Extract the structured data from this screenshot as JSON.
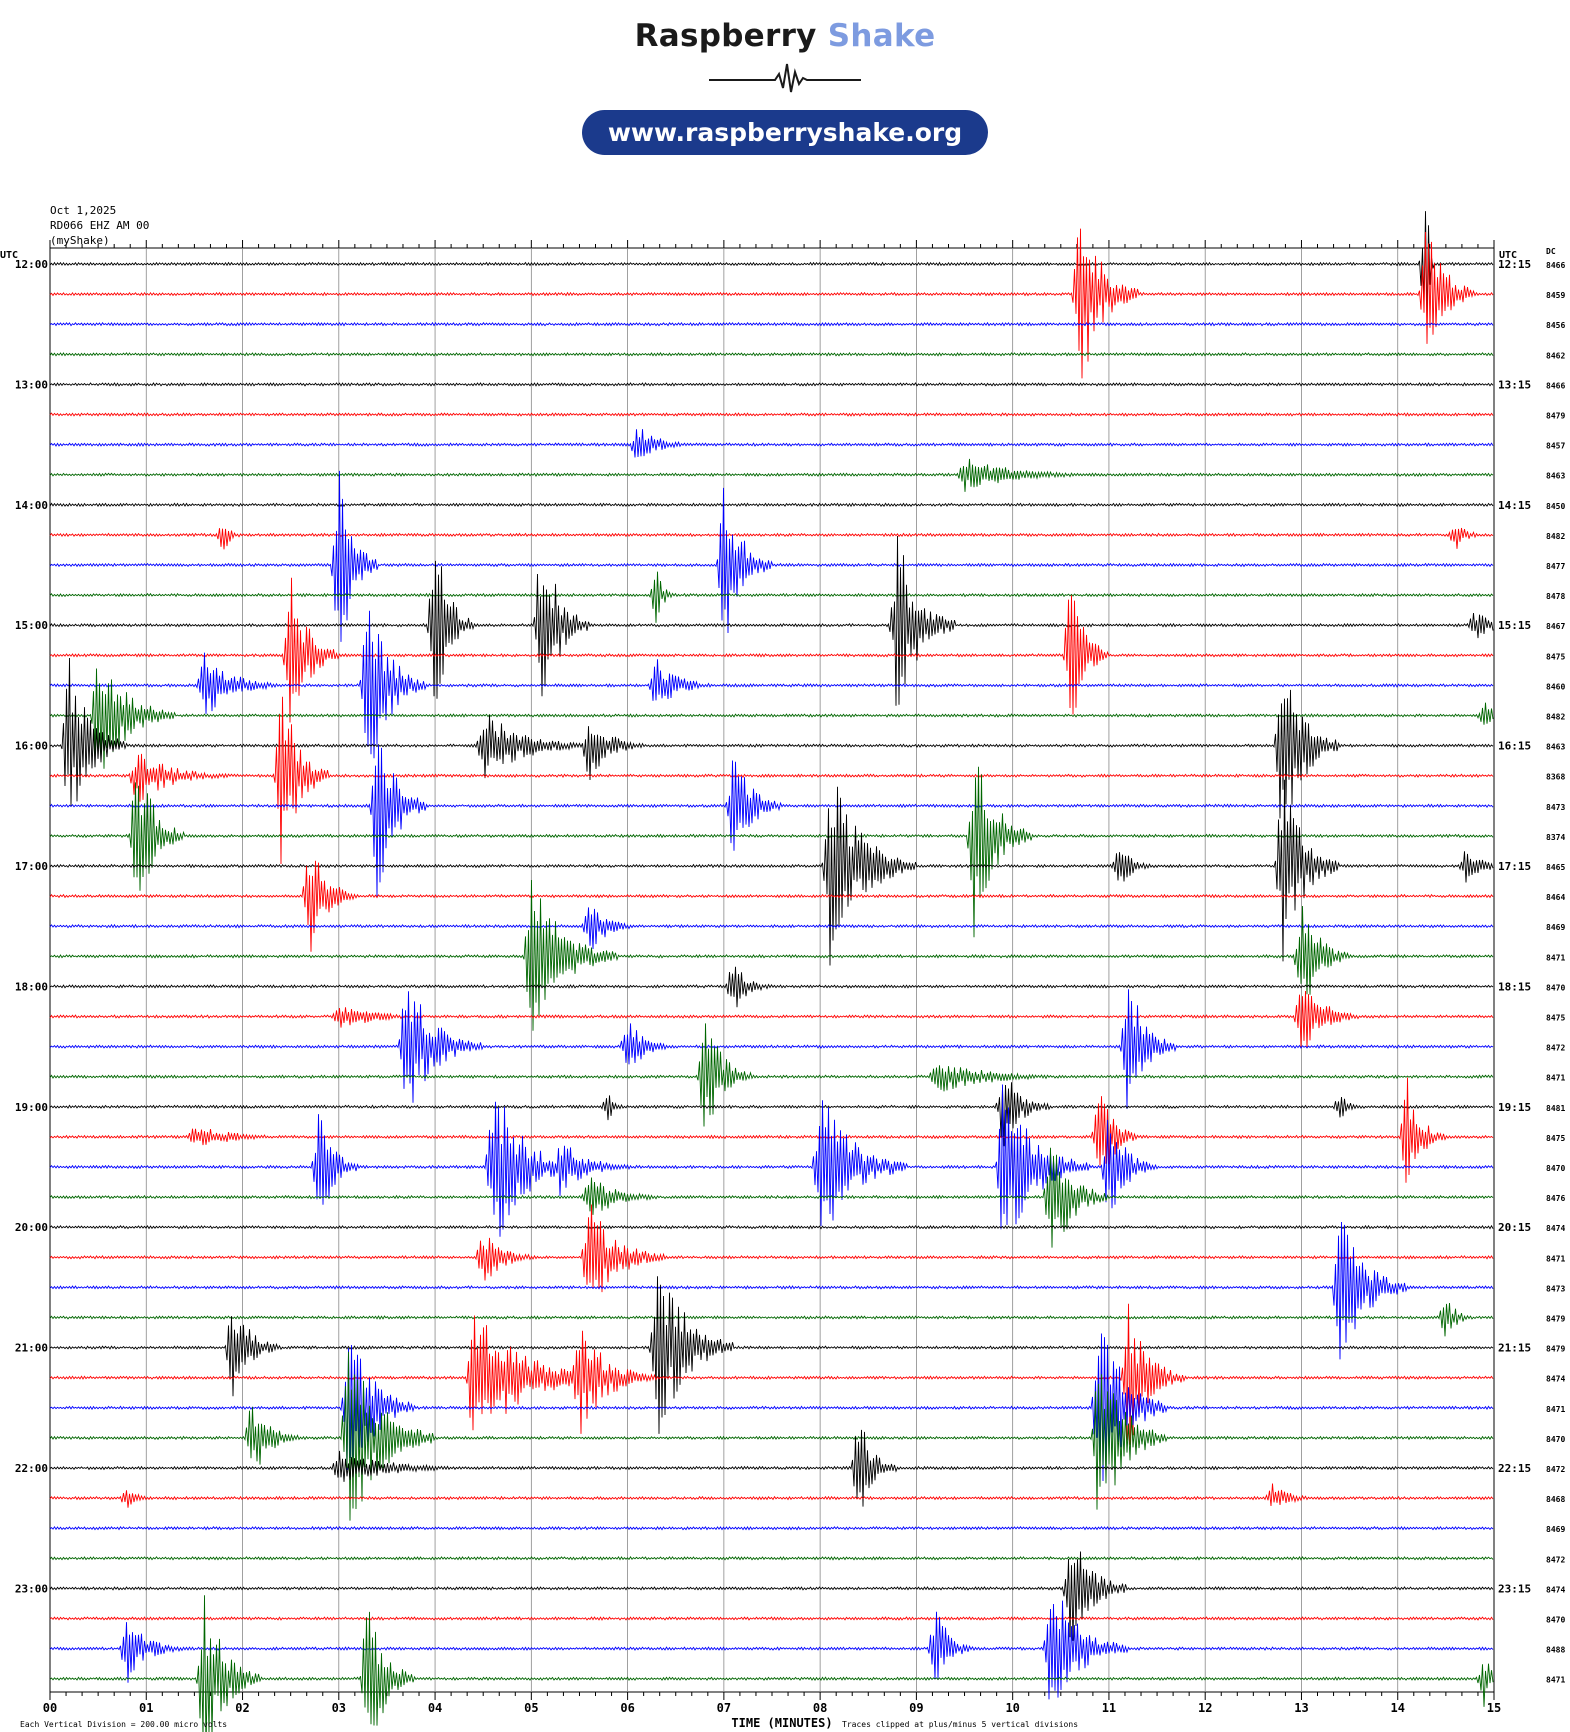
{
  "brand": {
    "name_part1": "Raspberry",
    "name_part2": "Shake",
    "url": "www.raspberryshake.org",
    "accent_color": "#7d9be0",
    "pill_color": "#1b3a8c"
  },
  "header": {
    "date": "Oct 1,2025",
    "station": "RD066 EHZ AM 00",
    "source": "(myShake)"
  },
  "chart_data": {
    "type": "line",
    "title": "",
    "xlabel": "TIME (MINUTES)",
    "left_axis_label": "UTC",
    "right_axis_label": "UTC",
    "dc_label": "DC",
    "x_ticks": [
      "00",
      "01",
      "02",
      "03",
      "04",
      "05",
      "06",
      "07",
      "08",
      "09",
      "10",
      "11",
      "12",
      "13",
      "14",
      "15"
    ],
    "xlim": [
      0,
      15
    ],
    "trace_minutes": 15,
    "footer_left": "Each Vertical Division = 200.00 micro volts",
    "footer_right": "Traces clipped at plus/minus 5 vertical divisions",
    "trace_colors": [
      "#000000",
      "#ff0000",
      "#0000ff",
      "#006600"
    ],
    "left_hour_labels": [
      "12:00",
      "13:00",
      "14:00",
      "15:00",
      "16:00",
      "17:00",
      "18:00",
      "19:00",
      "20:00",
      "21:00",
      "22:00",
      "23:00"
    ],
    "right_hour_labels": [
      "12:15",
      "13:15",
      "14:15",
      "15:15",
      "16:15",
      "17:15",
      "18:15",
      "19:15",
      "20:15",
      "21:15",
      "22:15",
      "23:15"
    ],
    "dc_values": [
      "8466",
      "8459",
      "8456",
      "8462",
      "8466",
      "8479",
      "8457",
      "8463",
      "8450",
      "8482",
      "8477",
      "8478",
      "8467",
      "8475",
      "8460",
      "8482",
      "8463",
      "8368",
      "8473",
      "8374",
      "8465",
      "8464",
      "8469",
      "8471",
      "8470",
      "8475",
      "8472",
      "8471",
      "8481",
      "8475",
      "8470",
      "8476",
      "8474",
      "8471",
      "8473",
      "8479",
      "8479",
      "8474",
      "8471",
      "8470",
      "8472",
      "8468",
      "8469",
      "8472",
      "8474",
      "8470",
      "8488",
      "8471"
    ],
    "events": [
      {
        "trace": 0,
        "minute": 14.3,
        "amp": 2.8,
        "dur": 0.08
      },
      {
        "trace": 1,
        "minute": 10.7,
        "amp": 3.5,
        "dur": 0.6
      },
      {
        "trace": 1,
        "minute": 14.3,
        "amp": 3,
        "dur": 0.5
      },
      {
        "trace": 6,
        "minute": 6.1,
        "amp": 0.7,
        "dur": 0.6
      },
      {
        "trace": 7,
        "minute": 9.5,
        "amp": 0.6,
        "dur": 1.5
      },
      {
        "trace": 9,
        "minute": 1.8,
        "amp": 0.7,
        "dur": 0.2
      },
      {
        "trace": 9,
        "minute": 14.6,
        "amp": 0.6,
        "dur": 0.3
      },
      {
        "trace": 10,
        "minute": 3.0,
        "amp": 3.5,
        "dur": 0.4
      },
      {
        "trace": 10,
        "minute": 7.0,
        "amp": 3,
        "dur": 0.5
      },
      {
        "trace": 11,
        "minute": 6.3,
        "amp": 1,
        "dur": 0.2
      },
      {
        "trace": 12,
        "minute": 4.0,
        "amp": 3.4,
        "dur": 0.4
      },
      {
        "trace": 12,
        "minute": 5.1,
        "amp": 3.4,
        "dur": 0.5
      },
      {
        "trace": 12,
        "minute": 8.8,
        "amp": 3.4,
        "dur": 0.6
      },
      {
        "trace": 12,
        "minute": 14.8,
        "amp": 0.5,
        "dur": 0.7
      },
      {
        "trace": 13,
        "minute": 2.5,
        "amp": 3,
        "dur": 0.5
      },
      {
        "trace": 13,
        "minute": 10.6,
        "amp": 3,
        "dur": 0.4
      },
      {
        "trace": 14,
        "minute": 1.6,
        "amp": 1.2,
        "dur": 0.8
      },
      {
        "trace": 14,
        "minute": 3.3,
        "amp": 3.4,
        "dur": 0.6
      },
      {
        "trace": 14,
        "minute": 6.3,
        "amp": 1,
        "dur": 0.6
      },
      {
        "trace": 15,
        "minute": 0.5,
        "amp": 2.5,
        "dur": 0.8
      },
      {
        "trace": 15,
        "minute": 14.9,
        "amp": 0.5,
        "dur": 0.3
      },
      {
        "trace": 16,
        "minute": 0.2,
        "amp": 3,
        "dur": 0.6
      },
      {
        "trace": 16,
        "minute": 4.5,
        "amp": 1.2,
        "dur": 1.2
      },
      {
        "trace": 16,
        "minute": 5.6,
        "amp": 1.2,
        "dur": 0.6
      },
      {
        "trace": 16,
        "minute": 12.8,
        "amp": 3.5,
        "dur": 0.6
      },
      {
        "trace": 17,
        "minute": 2.4,
        "amp": 3.5,
        "dur": 0.5
      },
      {
        "trace": 17,
        "minute": 0.9,
        "amp": 1,
        "dur": 1
      },
      {
        "trace": 18,
        "minute": 3.4,
        "amp": 3.5,
        "dur": 0.5
      },
      {
        "trace": 18,
        "minute": 7.1,
        "amp": 2.2,
        "dur": 0.5
      },
      {
        "trace": 19,
        "minute": 0.9,
        "amp": 3,
        "dur": 0.5
      },
      {
        "trace": 19,
        "minute": 9.6,
        "amp": 3.5,
        "dur": 0.6
      },
      {
        "trace": 20,
        "minute": 8.1,
        "amp": 3.5,
        "dur": 0.9
      },
      {
        "trace": 20,
        "minute": 12.8,
        "amp": 3.5,
        "dur": 0.6
      },
      {
        "trace": 20,
        "minute": 14.7,
        "amp": 0.6,
        "dur": 0.5
      },
      {
        "trace": 20,
        "minute": 11.1,
        "amp": 0.8,
        "dur": 0.4
      },
      {
        "trace": 21,
        "minute": 2.7,
        "amp": 2,
        "dur": 0.5
      },
      {
        "trace": 22,
        "minute": 5.6,
        "amp": 1,
        "dur": 0.5
      },
      {
        "trace": 23,
        "minute": 5.0,
        "amp": 2.8,
        "dur": 0.9
      },
      {
        "trace": 23,
        "minute": 13.0,
        "amp": 2.2,
        "dur": 0.5
      },
      {
        "trace": 24,
        "minute": 7.1,
        "amp": 1,
        "dur": 0.4
      },
      {
        "trace": 25,
        "minute": 13.0,
        "amp": 1.5,
        "dur": 0.6
      },
      {
        "trace": 25,
        "minute": 3.0,
        "amp": 0.5,
        "dur": 1
      },
      {
        "trace": 26,
        "minute": 3.7,
        "amp": 2.5,
        "dur": 0.8
      },
      {
        "trace": 26,
        "minute": 11.2,
        "amp": 2.5,
        "dur": 0.5
      },
      {
        "trace": 26,
        "minute": 6.0,
        "amp": 1,
        "dur": 0.5
      },
      {
        "trace": 27,
        "minute": 6.8,
        "amp": 2.3,
        "dur": 0.5
      },
      {
        "trace": 27,
        "minute": 9.2,
        "amp": 0.6,
        "dur": 1.5
      },
      {
        "trace": 28,
        "minute": 9.9,
        "amp": 1.5,
        "dur": 0.5
      },
      {
        "trace": 28,
        "minute": 13.4,
        "amp": 0.5,
        "dur": 0.3
      },
      {
        "trace": 28,
        "minute": 5.8,
        "amp": 0.5,
        "dur": 0.2
      },
      {
        "trace": 29,
        "minute": 14.1,
        "amp": 2,
        "dur": 0.4
      },
      {
        "trace": 29,
        "minute": 10.9,
        "amp": 2,
        "dur": 0.4
      },
      {
        "trace": 29,
        "minute": 1.5,
        "amp": 0.4,
        "dur": 1.2
      },
      {
        "trace": 30,
        "minute": 2.8,
        "amp": 2.3,
        "dur": 0.4
      },
      {
        "trace": 30,
        "minute": 4.6,
        "amp": 3,
        "dur": 0.9
      },
      {
        "trace": 30,
        "minute": 8.0,
        "amp": 3,
        "dur": 0.9
      },
      {
        "trace": 30,
        "minute": 9.9,
        "amp": 3,
        "dur": 0.9
      },
      {
        "trace": 30,
        "minute": 11.0,
        "amp": 2,
        "dur": 0.5
      },
      {
        "trace": 30,
        "minute": 5.3,
        "amp": 1,
        "dur": 0.8
      },
      {
        "trace": 31,
        "minute": 10.4,
        "amp": 2.5,
        "dur": 0.6
      },
      {
        "trace": 31,
        "minute": 5.6,
        "amp": 0.8,
        "dur": 0.8
      },
      {
        "trace": 33,
        "minute": 5.6,
        "amp": 2,
        "dur": 0.8
      },
      {
        "trace": 33,
        "minute": 4.5,
        "amp": 1,
        "dur": 0.6
      },
      {
        "trace": 34,
        "minute": 13.4,
        "amp": 3,
        "dur": 0.7
      },
      {
        "trace": 35,
        "minute": 14.5,
        "amp": 0.8,
        "dur": 0.3
      },
      {
        "trace": 36,
        "minute": 1.9,
        "amp": 1.8,
        "dur": 0.5
      },
      {
        "trace": 36,
        "minute": 6.3,
        "amp": 3.5,
        "dur": 0.8
      },
      {
        "trace": 37,
        "minute": 4.4,
        "amp": 2.5,
        "dur": 1.4
      },
      {
        "trace": 37,
        "minute": 5.5,
        "amp": 2,
        "dur": 0.8
      },
      {
        "trace": 37,
        "minute": 11.2,
        "amp": 2.5,
        "dur": 0.6
      },
      {
        "trace": 38,
        "minute": 3.1,
        "amp": 3,
        "dur": 0.7
      },
      {
        "trace": 38,
        "minute": 10.9,
        "amp": 3.5,
        "dur": 0.7
      },
      {
        "trace": 39,
        "minute": 2.1,
        "amp": 1.5,
        "dur": 0.5
      },
      {
        "trace": 39,
        "minute": 3.1,
        "amp": 3.5,
        "dur": 0.9
      },
      {
        "trace": 39,
        "minute": 10.9,
        "amp": 3.5,
        "dur": 0.7
      },
      {
        "trace": 40,
        "minute": 8.4,
        "amp": 2,
        "dur": 0.4
      },
      {
        "trace": 40,
        "minute": 3.0,
        "amp": 0.6,
        "dur": 1.5
      },
      {
        "trace": 41,
        "minute": 12.7,
        "amp": 0.5,
        "dur": 0.5
      },
      {
        "trace": 41,
        "minute": 0.8,
        "amp": 0.4,
        "dur": 0.3
      },
      {
        "trace": 44,
        "minute": 10.6,
        "amp": 2.5,
        "dur": 0.6
      },
      {
        "trace": 46,
        "minute": 0.8,
        "amp": 1.2,
        "dur": 0.6
      },
      {
        "trace": 46,
        "minute": 9.2,
        "amp": 1.5,
        "dur": 0.4
      },
      {
        "trace": 46,
        "minute": 10.4,
        "amp": 2.5,
        "dur": 0.8
      },
      {
        "trace": 47,
        "minute": 1.6,
        "amp": 3,
        "dur": 0.6
      },
      {
        "trace": 47,
        "minute": 3.3,
        "amp": 3,
        "dur": 0.5
      },
      {
        "trace": 47,
        "minute": 14.9,
        "amp": 1,
        "dur": 0.2
      }
    ]
  }
}
